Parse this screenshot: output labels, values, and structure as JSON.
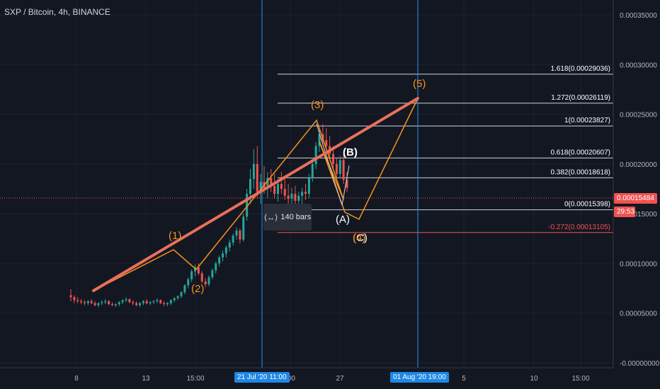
{
  "header": {
    "title": "SXP / Bitcoin, 4h, BINANCE"
  },
  "colors": {
    "background": "#131722",
    "grid": "#1e222d",
    "up": "#26a69a",
    "down": "#ef5350",
    "wave": "#f7931a",
    "trendline": "#e8705a",
    "corrective": "#d1d4dc",
    "vline": "#2196f3",
    "price_tag": "#ef5350",
    "date_tag": "#1e88e5"
  },
  "chart_data": {
    "type": "candlestick",
    "title": "SXP / Bitcoin, 4h, BINANCE",
    "x_ticks": [
      "8",
      "13",
      "15:00",
      "21 Jul '20",
      "11:00",
      ":00",
      "27",
      "01 Aug '20",
      "19:00",
      "5",
      "10",
      "15:00"
    ],
    "y_ticks": [
      "0.00035000",
      "0.00030000",
      "0.00025000",
      "0.00020000",
      "0.00015000",
      "0.00010000",
      "0.00005000",
      "-0.00000000"
    ],
    "ylim": [
      -5e-06,
      0.000365
    ],
    "current_price": "0.00015484",
    "countdown": "29:53",
    "date_labels": [
      "21 Jul '20  11:00",
      "01 Aug '20  19:00"
    ],
    "fibonacci": [
      {
        "label": "1.618(0.00029036)",
        "value": 0.00029036
      },
      {
        "label": "1.272(0.00026119)",
        "value": 0.00026119
      },
      {
        "label": "1(0.00023827)",
        "value": 0.00023827
      },
      {
        "label": "0.618(0.00020607)",
        "value": 0.00020607
      },
      {
        "label": "0.382(0.00018618)",
        "value": 0.00018618
      },
      {
        "label": "0(0.00015398)",
        "value": 0.00015398
      },
      {
        "label": "-0.272(0.00013105)",
        "value": 0.00013105
      }
    ],
    "wave_labels": [
      {
        "text": "(1)",
        "color": "orange"
      },
      {
        "text": "(2)",
        "color": "orange"
      },
      {
        "text": "(3)",
        "color": "orange"
      },
      {
        "text": "(5)",
        "color": "orange"
      },
      {
        "text": "(A)",
        "color": "white"
      },
      {
        "text": "(B)",
        "color": "white"
      },
      {
        "text": "(C)",
        "color": "white"
      },
      {
        "text": "(4)",
        "color": "orange"
      }
    ],
    "ohlc_series": [
      [
        6.8e-05,
        7.4e-05,
        6.2e-05,
        6.6e-05
      ],
      [
        6.6e-05,
        6.8e-05,
        6e-05,
        6.3e-05
      ],
      [
        6.3e-05,
        6.6e-05,
        6e-05,
        6.2e-05
      ],
      [
        6.2e-05,
        6.4e-05,
        5.9e-05,
        6.1e-05
      ],
      [
        6.1e-05,
        6.3e-05,
        5.8e-05,
        6e-05
      ],
      [
        6e-05,
        6.3e-05,
        5.8e-05,
        6.2e-05
      ],
      [
        6.2e-05,
        6.4e-05,
        5.9e-05,
        6e-05
      ],
      [
        6e-05,
        6.2e-05,
        5.7e-05,
        5.8e-05
      ],
      [
        5.8e-05,
        6.1e-05,
        5.6e-05,
        6e-05
      ],
      [
        6e-05,
        6.3e-05,
        5.8e-05,
        6.1e-05
      ],
      [
        6.1e-05,
        6.4e-05,
        5.9e-05,
        6.2e-05
      ],
      [
        6.2e-05,
        6.3e-05,
        5.8e-05,
        5.9e-05
      ],
      [
        5.9e-05,
        6.1e-05,
        5.7e-05,
        5.8e-05
      ],
      [
        5.8e-05,
        6e-05,
        5.6e-05,
        5.9e-05
      ],
      [
        5.9e-05,
        6.2e-05,
        5.7e-05,
        6.1e-05
      ],
      [
        6.1e-05,
        6.4e-05,
        5.9e-05,
        6.3e-05
      ],
      [
        6.3e-05,
        6.6e-05,
        6.1e-05,
        6.4e-05
      ],
      [
        6.4e-05,
        6.5e-05,
        6e-05,
        6.1e-05
      ],
      [
        6.1e-05,
        6.3e-05,
        5.8e-05,
        6e-05
      ],
      [
        6e-05,
        6.2e-05,
        5.7e-05,
        5.8e-05
      ],
      [
        5.8e-05,
        6.1e-05,
        5.6e-05,
        6e-05
      ],
      [
        6e-05,
        6.3e-05,
        5.8e-05,
        6.2e-05
      ],
      [
        6.2e-05,
        6.4e-05,
        5.9e-05,
        6e-05
      ],
      [
        6e-05,
        6.2e-05,
        5.8e-05,
        6.1e-05
      ],
      [
        6.1e-05,
        6.3e-05,
        5.9e-05,
        6.2e-05
      ],
      [
        6.2e-05,
        6.5e-05,
        6e-05,
        6.3e-05
      ],
      [
        6.3e-05,
        6.4e-05,
        5.9e-05,
        6e-05
      ],
      [
        6e-05,
        6.2e-05,
        5.7e-05,
        5.9e-05
      ],
      [
        5.9e-05,
        6.1e-05,
        5.7e-05,
        6e-05
      ],
      [
        6e-05,
        6.4e-05,
        5.8e-05,
        6.3e-05
      ],
      [
        6.3e-05,
        6.6e-05,
        6.1e-05,
        6.5e-05
      ],
      [
        6.5e-05,
        6.8e-05,
        6.3e-05,
        6.7e-05
      ],
      [
        6.7e-05,
        7.2e-05,
        6.5e-05,
        7.1e-05
      ],
      [
        7.1e-05,
        7.9e-05,
        6.9e-05,
        7.8e-05
      ],
      [
        7.8e-05,
        8.6e-05,
        7.5e-05,
        8.4e-05
      ],
      [
        8.4e-05,
        9.4e-05,
        8.1e-05,
        9.2e-05
      ],
      [
        9.2e-05,
        9.9e-05,
        8.7e-05,
        9.6e-05
      ],
      [
        9.6e-05,
        0.0001,
        8.8e-05,
        9e-05
      ],
      [
        9e-05,
        9.2e-05,
        8e-05,
        8.2e-05
      ],
      [
        8.2e-05,
        8.5e-05,
        7.6e-05,
        7.9e-05
      ],
      [
        7.9e-05,
        8.8e-05,
        7.7e-05,
        8.6e-05
      ],
      [
        8.6e-05,
        9.5e-05,
        8.4e-05,
        9.3e-05
      ],
      [
        9.3e-05,
        0.000102,
        9e-05,
        0.0001
      ],
      [
        0.0001,
        0.000108,
        9.7e-05,
        0.000106
      ],
      [
        0.000106,
        0.000113,
        0.000102,
        0.00011
      ],
      [
        0.00011,
        0.000118,
        0.000106,
        0.000116
      ],
      [
        0.000116,
        0.000124,
        0.000112,
        0.000121
      ],
      [
        0.000121,
        0.00013,
        0.000118,
        0.000128
      ],
      [
        0.000128,
        0.000136,
        0.000124,
        0.000133
      ],
      [
        0.000133,
        0.000135,
        0.00012,
        0.000124
      ],
      [
        0.000124,
        0.00015,
        0.000122,
        0.000147
      ],
      [
        0.000147,
        0.000175,
        0.000143,
        0.00017
      ],
      [
        0.00017,
        0.000195,
        0.00016,
        0.000185
      ],
      [
        0.000185,
        0.000215,
        0.000175,
        0.0002
      ],
      [
        0.0002,
        0.000218,
        0.000165,
        0.000172
      ],
      [
        0.000172,
        0.00019,
        0.00016,
        0.000182
      ],
      [
        0.000182,
        0.000198,
        0.00017,
        0.000176
      ],
      [
        0.000176,
        0.000192,
        0.000166,
        0.000186
      ],
      [
        0.000186,
        0.000195,
        0.000172,
        0.000178
      ],
      [
        0.000178,
        0.00019,
        0.000165,
        0.00017
      ],
      [
        0.00017,
        0.000185,
        0.000162,
        0.00018
      ],
      [
        0.00018,
        0.000192,
        0.00017,
        0.000175
      ],
      [
        0.000175,
        0.000186,
        0.000164,
        0.000168
      ],
      [
        0.000168,
        0.00018,
        0.000158,
        0.000165
      ],
      [
        0.000165,
        0.000176,
        0.000156,
        0.00017
      ],
      [
        0.00017,
        0.000178,
        0.00016,
        0.000163
      ],
      [
        0.000163,
        0.000172,
        0.000156,
        0.000168
      ],
      [
        0.000168,
        0.000176,
        0.00016,
        0.000172
      ],
      [
        0.000172,
        0.00018,
        0.000164,
        0.00017
      ],
      [
        0.00017,
        0.00019,
        0.000166,
        0.000186
      ],
      [
        0.000186,
        0.000205,
        0.000182,
        0.0002
      ],
      [
        0.0002,
        0.000222,
        0.000195,
        0.000218
      ],
      [
        0.000218,
        0.000236,
        0.000212,
        0.00023
      ],
      [
        0.00023,
        0.00024,
        0.000218,
        0.000224
      ],
      [
        0.000224,
        0.000236,
        0.000214,
        0.000218
      ],
      [
        0.000218,
        0.000228,
        0.000205,
        0.00021
      ],
      [
        0.00021,
        0.000218,
        0.000196,
        0.0002
      ],
      [
        0.0002,
        0.000206,
        0.000186,
        0.00019
      ],
      [
        0.00019,
        0.000208,
        0.000186,
        0.000204
      ],
      [
        0.000204,
        0.00021,
        0.00018,
        0.000184
      ],
      [
        0.000184,
        0.000192,
        0.000172,
        0.000176
      ]
    ]
  }
}
